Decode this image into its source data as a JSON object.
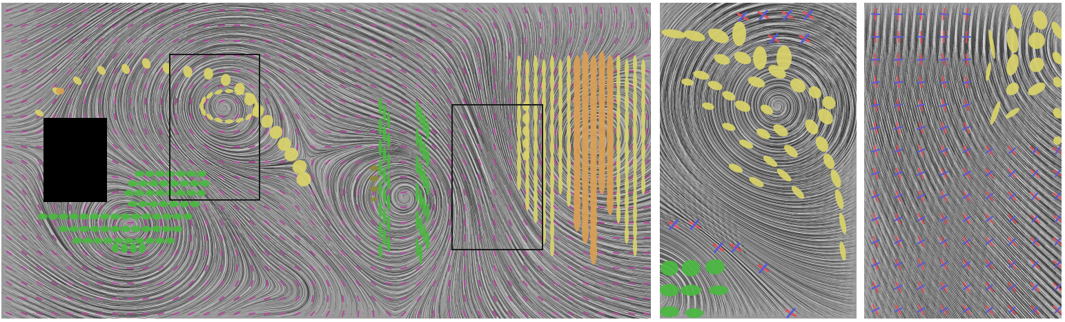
{
  "figure": {
    "panels": [
      {
        "id": "main",
        "role": "full flow field"
      },
      {
        "id": "zoom-a",
        "role": "magnified inset of upper-left box"
      },
      {
        "id": "zoom-b",
        "role": "magnified inset of right box"
      }
    ],
    "colors": {
      "background": "#9a9a9a",
      "streamline": "#2a2a2a",
      "streamline_light": "#d8d8d8",
      "glyph_magenta": "#b04a9c",
      "glyph_red": "#e0505a",
      "glyph_blue": "#5a5ad8",
      "ellipse_yellow": "#d9d36a",
      "ellipse_orange": "#d9a055",
      "ellipse_green": "#4ab840",
      "ellipse_olive": "#8c8a3c",
      "obstacle": "#000000",
      "box_outline": "#1a1a1a"
    }
  }
}
